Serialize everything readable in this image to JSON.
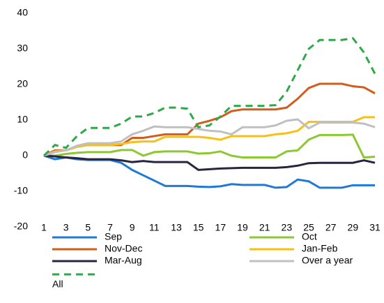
{
  "chart_data": {
    "type": "line",
    "x": [
      1,
      2,
      3,
      4,
      5,
      6,
      7,
      8,
      9,
      10,
      11,
      12,
      13,
      14,
      15,
      16,
      17,
      18,
      19,
      20,
      21,
      22,
      23,
      24,
      25,
      26,
      27,
      28,
      29,
      30,
      31
    ],
    "xlim": [
      1,
      31
    ],
    "xticks": [
      1,
      3,
      5,
      7,
      9,
      11,
      13,
      15,
      17,
      19,
      21,
      23,
      25,
      27,
      29,
      31
    ],
    "ylim": [
      -20,
      40
    ],
    "yticks": [
      -20,
      -10,
      0,
      10,
      20,
      30,
      40
    ],
    "series": [
      {
        "name": "Sep",
        "color": "#1f7ad6",
        "values": [
          0,
          -1,
          -0.5,
          -1,
          -1.2,
          -1.2,
          -1.2,
          -2,
          -4,
          -5.5,
          -7,
          -8.5,
          -8.5,
          -8.5,
          -8.7,
          -8.8,
          -8.6,
          -8,
          -8.2,
          -8.2,
          -8.2,
          -9,
          -8.8,
          -6.7,
          -7.2,
          -9,
          -9,
          -9,
          -8.3,
          -8.3,
          -8.3
        ]
      },
      {
        "name": "Oct",
        "color": "#8cc832",
        "values": [
          0,
          0,
          0.5,
          0.8,
          1,
          1,
          1,
          1.6,
          1.6,
          0,
          1,
          1.2,
          1.2,
          1.2,
          0.6,
          0.7,
          1.2,
          0,
          -0.5,
          -0.5,
          -0.5,
          -0.5,
          1.2,
          1.5,
          4.5,
          5.8,
          5.8,
          5.8,
          5.9,
          -0.5,
          -0.3
        ]
      },
      {
        "name": "Nov-Dec",
        "color": "#d35c1a",
        "values": [
          0,
          1.5,
          1.5,
          2.5,
          3,
          3,
          3,
          3,
          5,
          5,
          5.5,
          6,
          6,
          6,
          9,
          9.8,
          10.8,
          12.5,
          13,
          13,
          13,
          13,
          13.5,
          16,
          19,
          20.2,
          20.2,
          20.2,
          19.5,
          19.2,
          17.5
        ]
      },
      {
        "name": "Jan-Feb",
        "color": "#f8c014",
        "values": [
          0,
          1.2,
          1.5,
          2.5,
          3,
          3,
          3,
          3.3,
          3.8,
          4,
          4,
          5.3,
          5.3,
          5.3,
          5.3,
          5,
          4.5,
          5.5,
          5.5,
          5.5,
          5.5,
          6,
          6.3,
          7,
          9.5,
          9.5,
          9.5,
          9.5,
          9.5,
          10.8,
          10.8
        ]
      },
      {
        "name": "Mar-Aug",
        "color": "#2b2441",
        "values": [
          0,
          -0.2,
          -0.5,
          -0.7,
          -1,
          -1,
          -1,
          -1.3,
          -1.8,
          -1.5,
          -1.8,
          -1.8,
          -1.8,
          -1.8,
          -4,
          -3.8,
          -3.6,
          -3.5,
          -3.4,
          -3.4,
          -3.4,
          -3.4,
          -3.2,
          -2.8,
          -2.1,
          -2,
          -2,
          -2,
          -2,
          -1.3,
          -2
        ]
      },
      {
        "name": "Over a year",
        "color": "#c0c0c0",
        "values": [
          0,
          1,
          1.5,
          2.8,
          3.5,
          3.5,
          3.5,
          4,
          6,
          7,
          8.2,
          8,
          8,
          8,
          7.5,
          7,
          6.8,
          6,
          8,
          8,
          8,
          8.5,
          9.8,
          10.2,
          7.7,
          9.3,
          9.3,
          9.3,
          9.3,
          9,
          8
        ]
      },
      {
        "name": "All",
        "color": "#2ea84a",
        "dashed": true,
        "values": [
          0,
          3,
          2.2,
          5.5,
          7.8,
          7.8,
          7.8,
          9,
          11,
          11,
          12,
          13.5,
          13.5,
          13.2,
          8,
          8.5,
          11,
          14,
          14,
          14,
          14,
          14.2,
          18,
          24,
          30,
          32.5,
          32.5,
          32.5,
          33,
          29,
          23
        ]
      }
    ]
  }
}
